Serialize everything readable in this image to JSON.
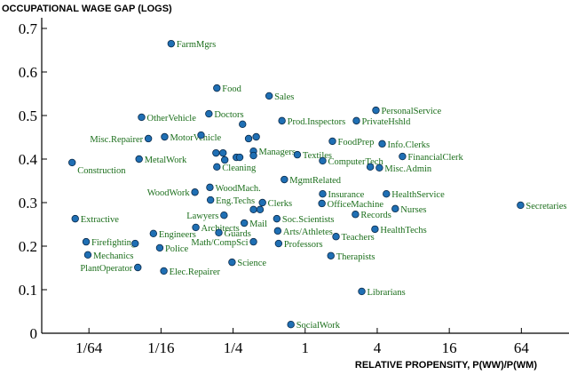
{
  "chart_data": {
    "type": "scatter",
    "title": "OCCUPATIONAL WAGE GAP (LOGS)",
    "x_label": "RELATIVE PROPENSITY, P(WW)/P(WM)",
    "xscale": "log",
    "color": "#1f6fb4",
    "label_color": "#1b6e1b",
    "xlim": [
      0.0063,
      160
    ],
    "ylim": [
      0,
      0.7
    ],
    "xticks": [
      {
        "value": 0.015625,
        "label": "1/64"
      },
      {
        "value": 0.0625,
        "label": "1/16"
      },
      {
        "value": 0.25,
        "label": "1/4"
      },
      1,
      4,
      16,
      64
    ],
    "yticks": [
      0,
      0.1,
      0.2,
      0.3,
      0.4,
      0.5,
      0.6,
      0.7
    ],
    "labels": [
      "FarmMgrs",
      "Food",
      "Sales",
      "PersonalService",
      "OtherVehicle",
      "Doctors",
      "Prod.Inspectors",
      "PrivateHshld",
      null,
      "Misc.Repairer",
      "MotorVehicle",
      null,
      null,
      null,
      "Managers",
      "FoodPrep",
      "Info.Clerks",
      "Textiles",
      null,
      null,
      null,
      null,
      null,
      "MetalWork",
      "FinancialClerk",
      "ComputerTech",
      "Construction",
      "Misc.Admin",
      null,
      "Cleaning",
      null,
      "MgmtRelated",
      "WoodWork",
      "WoodMach.",
      "Insurance",
      "HealthService",
      "Secretaries",
      "Eng.Techs",
      "Clerks",
      "OfficeMachine",
      null,
      null,
      "Nurses",
      "Lawyers",
      "Records",
      "Extractive",
      "Soc.Scientists",
      "Mail",
      "Architects",
      "HealthTechs",
      "Arts/Athletes",
      "Engineers",
      "Guards",
      "Teachers",
      "Firefighting",
      null,
      "Math/CompSci",
      "Professors",
      "Police",
      "Mechanics",
      "Therapists",
      "Science",
      "PlantOperator",
      "Elec.Repairer",
      "Librarians",
      "SocialWork"
    ],
    "x": [
      0.076,
      0.183,
      0.5,
      3.9,
      0.043,
      0.157,
      0.64,
      2.68,
      0.3,
      0.049,
      0.067,
      0.135,
      0.337,
      0.39,
      0.37,
      1.69,
      4.4,
      0.86,
      0.18,
      0.206,
      0.266,
      0.284,
      0.37,
      0.041,
      6.5,
      1.4,
      0.0113,
      4.17,
      3.5,
      0.183,
      0.213,
      0.67,
      0.12,
      0.16,
      1.4,
      4.77,
      63,
      0.162,
      0.44,
      1.38,
      0.37,
      0.42,
      5.66,
      0.21,
      2.63,
      0.012,
      0.58,
      0.31,
      0.122,
      3.83,
      0.59,
      0.054,
      0.19,
      1.81,
      0.0148,
      0.038,
      0.37,
      0.6,
      0.061,
      0.0153,
      1.64,
      0.245,
      0.04,
      0.066,
      2.97,
      0.76
    ],
    "values": [
      0.665,
      0.563,
      0.545,
      0.512,
      0.496,
      0.504,
      0.488,
      0.488,
      0.48,
      0.447,
      0.451,
      0.455,
      0.447,
      0.451,
      0.418,
      0.441,
      0.435,
      0.41,
      0.414,
      0.414,
      0.404,
      0.404,
      0.408,
      0.4,
      0.406,
      0.396,
      0.392,
      0.38,
      0.382,
      0.382,
      0.398,
      0.353,
      0.324,
      0.335,
      0.32,
      0.32,
      0.294,
      0.306,
      0.3,
      0.298,
      0.284,
      0.284,
      0.286,
      0.271,
      0.273,
      0.263,
      0.263,
      0.253,
      0.243,
      0.239,
      0.235,
      0.229,
      0.231,
      0.222,
      0.21,
      0.206,
      0.21,
      0.206,
      0.196,
      0.18,
      0.178,
      0.163,
      0.151,
      0.143,
      0.096,
      0.02
    ]
  }
}
